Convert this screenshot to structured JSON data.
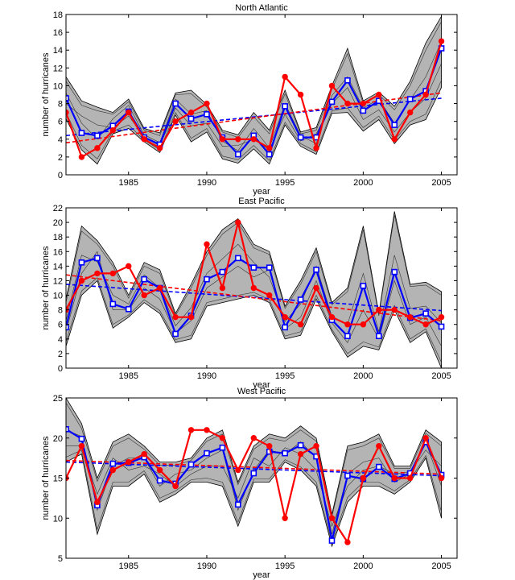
{
  "chart_data": [
    {
      "type": "line",
      "title": "North Atlantic",
      "xlabel": "year",
      "ylabel": "number of hurricanes",
      "xlim": [
        1981,
        2006
      ],
      "ylim": [
        0,
        18
      ],
      "xticks": [
        1985,
        1990,
        1995,
        2000,
        2005
      ],
      "yticks": [
        0,
        2,
        4,
        6,
        8,
        10,
        12,
        14,
        16,
        18
      ],
      "grid": false,
      "legend": "none",
      "x": [
        1981,
        1982,
        1983,
        1984,
        1985,
        1986,
        1987,
        1988,
        1989,
        1990,
        1991,
        1992,
        1993,
        1994,
        1995,
        1996,
        1997,
        1998,
        1999,
        2000,
        2001,
        2002,
        2003,
        2004,
        2005
      ],
      "band": {
        "color": "#b4b4b4",
        "upper": [
          11.0,
          8.3,
          7.6,
          7.0,
          8.5,
          5.2,
          4.7,
          9.2,
          9.5,
          7.9,
          5.0,
          4.5,
          7.0,
          5.0,
          9.5,
          4.8,
          5.3,
          10.0,
          14.2,
          8.3,
          9.3,
          7.7,
          10.5,
          14.8,
          17.8
        ],
        "lower": [
          6.3,
          2.8,
          1.2,
          4.6,
          5.2,
          3.7,
          2.5,
          6.7,
          3.7,
          4.8,
          1.8,
          1.3,
          2.9,
          1.2,
          5.6,
          3.2,
          2.3,
          6.9,
          7.0,
          4.9,
          6.2,
          3.5,
          5.6,
          6.2,
          9.8
        ],
        "members": [
          [
            10.5,
            7.8,
            7.2,
            6.8,
            8.2,
            5.0,
            4.4,
            9.0,
            9.1,
            7.6,
            4.8,
            4.2,
            6.5,
            4.6,
            9.1,
            4.6,
            5.0,
            9.6,
            13.6,
            8.0,
            9.0,
            7.3,
            10.0,
            14.0,
            17.2
          ],
          [
            7.0,
            3.3,
            1.8,
            4.9,
            5.6,
            3.9,
            2.8,
            7.0,
            4.1,
            5.2,
            2.1,
            1.7,
            3.3,
            1.6,
            5.9,
            3.5,
            2.6,
            7.2,
            7.5,
            5.3,
            6.6,
            3.9,
            6.0,
            6.8,
            10.6
          ],
          [
            9.2,
            5.8,
            4.0,
            6.3,
            7.8,
            4.5,
            3.6,
            8.5,
            6.8,
            7.2,
            3.8,
            2.7,
            5.2,
            3.0,
            8.0,
            4.4,
            3.5,
            8.9,
            11.0,
            7.5,
            8.5,
            5.8,
            8.4,
            11.0,
            15.0
          ],
          [
            8.0,
            6.6,
            5.6,
            5.3,
            6.6,
            4.3,
            3.2,
            7.5,
            5.5,
            5.8,
            3.2,
            3.3,
            4.0,
            2.8,
            6.8,
            3.8,
            4.6,
            8.0,
            9.8,
            6.2,
            7.3,
            4.8,
            7.0,
            8.6,
            12.5
          ]
        ]
      },
      "series": [
        {
          "color": "#0000ff",
          "marker": "square",
          "values": [
            8.6,
            4.7,
            4.4,
            5.5,
            7.1,
            4.2,
            3.4,
            8.0,
            6.3,
            6.8,
            4.2,
            2.3,
            4.4,
            2.3,
            7.7,
            4.2,
            4.2,
            8.2,
            10.6,
            7.2,
            8.3,
            5.6,
            8.5,
            9.4,
            14.2
          ]
        },
        {
          "color": "#ff0000",
          "marker": "circle",
          "values": [
            7,
            2,
            3,
            5,
            7,
            4,
            3,
            6,
            7,
            8,
            4,
            4,
            4,
            3,
            11,
            9,
            3,
            10,
            8,
            8,
            9,
            4,
            7,
            9,
            15
          ]
        }
      ],
      "trends": [
        {
          "color": "#0000ff",
          "dash": true,
          "x": [
            1981,
            2005
          ],
          "y": [
            4.4,
            8.6
          ]
        },
        {
          "color": "#ff0000",
          "dash": true,
          "x": [
            1981,
            2005
          ],
          "y": [
            3.6,
            9.2
          ]
        }
      ]
    },
    {
      "type": "line",
      "title": "East Pacific",
      "xlabel": "year",
      "ylabel": "number of hurricanes",
      "xlim": [
        1981,
        2006
      ],
      "ylim": [
        0,
        22
      ],
      "xticks": [
        1985,
        1990,
        1995,
        2000,
        2005
      ],
      "yticks": [
        0,
        2,
        4,
        6,
        8,
        10,
        12,
        14,
        16,
        18,
        20,
        22
      ],
      "grid": false,
      "legend": "none",
      "x": [
        1981,
        1982,
        1983,
        1984,
        1985,
        1986,
        1987,
        1988,
        1989,
        1990,
        1991,
        1992,
        1993,
        1994,
        1995,
        1996,
        1997,
        1998,
        1999,
        2000,
        2001,
        2002,
        2003,
        2004,
        2005
      ],
      "band": {
        "color": "#b4b4b4",
        "upper": [
          9.5,
          19.5,
          17.5,
          14.5,
          10.0,
          14.5,
          13.5,
          7.5,
          11.5,
          16.0,
          19.0,
          20.5,
          17.0,
          16.0,
          8.5,
          12.0,
          16.5,
          9.0,
          11.0,
          19.5,
          7.5,
          21.5,
          11.5,
          11.8,
          10.5
        ],
        "lower": [
          3.0,
          10.0,
          12.0,
          5.5,
          7.0,
          9.0,
          7.5,
          3.5,
          4.0,
          8.5,
          9.0,
          9.5,
          10.0,
          9.0,
          4.0,
          4.5,
          9.5,
          5.0,
          1.5,
          3.0,
          2.5,
          8.0,
          3.5,
          5.0,
          0.0
        ],
        "members": [
          [
            9.0,
            18.8,
            17.0,
            14.0,
            9.6,
            14.0,
            13.0,
            7.2,
            11.0,
            15.5,
            18.4,
            20.0,
            16.5,
            15.6,
            8.2,
            11.5,
            16.0,
            8.7,
            10.5,
            19.0,
            7.2,
            21.0,
            11.2,
            11.4,
            10.0
          ],
          [
            3.6,
            10.6,
            12.4,
            6.0,
            7.3,
            9.4,
            7.9,
            3.9,
            4.5,
            9.0,
            9.5,
            10.0,
            10.4,
            9.4,
            4.4,
            5.0,
            10.0,
            5.3,
            2.0,
            3.6,
            2.9,
            8.6,
            4.0,
            5.4,
            0.8
          ],
          [
            6.5,
            15.5,
            14.6,
            10.0,
            8.8,
            12.8,
            11.0,
            5.8,
            8.3,
            13.0,
            15.0,
            17.0,
            14.5,
            12.5,
            6.4,
            8.8,
            14.0,
            7.1,
            6.0,
            13.0,
            5.0,
            15.5,
            8.2,
            8.5,
            6.2
          ],
          [
            5.0,
            13.0,
            16.0,
            8.0,
            8.0,
            11.0,
            9.5,
            4.8,
            6.5,
            11.0,
            12.5,
            14.0,
            12.5,
            13.5,
            5.4,
            7.0,
            12.0,
            6.2,
            3.5,
            8.0,
            4.0,
            12.0,
            6.0,
            7.0,
            3.0
          ]
        ]
      },
      "series": [
        {
          "color": "#0000ff",
          "marker": "square",
          "values": [
            5.6,
            14.5,
            15.1,
            8.8,
            8.1,
            12.2,
            11.0,
            4.7,
            7.2,
            12.2,
            13.2,
            15.1,
            13.8,
            13.8,
            5.6,
            9.4,
            13.5,
            6.6,
            4.4,
            11.3,
            4.4,
            13.2,
            6.9,
            7.5,
            5.7
          ]
        },
        {
          "color": "#ff0000",
          "marker": "circle",
          "values": [
            8,
            12,
            13,
            13,
            14,
            10,
            11,
            7,
            7,
            17,
            11,
            20,
            11,
            10,
            7,
            6,
            11,
            7,
            6,
            6,
            8,
            8,
            7,
            6,
            7
          ]
        }
      ],
      "trends": [
        {
          "color": "#0000ff",
          "dash": true,
          "x": [
            1981,
            2005
          ],
          "y": [
            11.5,
            7.9
          ]
        },
        {
          "color": "#ff0000",
          "dash": true,
          "x": [
            1981,
            2005
          ],
          "y": [
            12.8,
            6.5
          ]
        }
      ]
    },
    {
      "type": "line",
      "title": "West Pacific",
      "xlabel": "year",
      "ylabel": "number of hurricanes",
      "xlim": [
        1981,
        2006
      ],
      "ylim": [
        5,
        25
      ],
      "xticks": [
        1985,
        1990,
        1995,
        2000,
        2005
      ],
      "yticks": [
        5,
        10,
        15,
        20,
        25
      ],
      "grid": false,
      "legend": "none",
      "x": [
        1981,
        1982,
        1983,
        1984,
        1985,
        1986,
        1987,
        1988,
        1989,
        1990,
        1991,
        1992,
        1993,
        1994,
        1995,
        1996,
        1997,
        1998,
        1999,
        2000,
        2001,
        2002,
        2003,
        2004,
        2005
      ],
      "band": {
        "color": "#b4b4b4",
        "upper": [
          25.0,
          21.8,
          15.0,
          19.5,
          20.5,
          19.0,
          17.0,
          17.0,
          17.5,
          20.0,
          21.0,
          14.5,
          19.0,
          20.5,
          20.0,
          21.5,
          20.0,
          10.5,
          19.0,
          19.5,
          20.5,
          16.5,
          16.5,
          21.0,
          19.5
        ],
        "lower": [
          17.0,
          18.0,
          8.0,
          14.0,
          14.0,
          15.5,
          12.0,
          13.0,
          14.5,
          14.5,
          14.0,
          9.0,
          14.5,
          14.5,
          17.0,
          16.0,
          14.0,
          6.5,
          12.0,
          14.0,
          14.0,
          13.0,
          14.5,
          17.5,
          10.0
        ],
        "members": [
          [
            24.4,
            21.2,
            14.6,
            19.0,
            20.0,
            18.6,
            16.6,
            16.6,
            17.2,
            19.6,
            20.5,
            14.2,
            18.6,
            20.0,
            19.6,
            21.0,
            19.6,
            10.2,
            18.5,
            19.0,
            20.0,
            16.2,
            16.2,
            20.6,
            19.0
          ],
          [
            17.6,
            18.5,
            8.6,
            14.5,
            14.5,
            15.9,
            12.5,
            13.4,
            14.8,
            15.0,
            14.5,
            9.5,
            14.9,
            14.9,
            17.3,
            16.4,
            14.5,
            6.9,
            12.6,
            14.5,
            14.5,
            13.4,
            14.8,
            17.8,
            10.8
          ],
          [
            21.0,
            20.2,
            11.0,
            16.5,
            17.5,
            17.5,
            14.0,
            15.5,
            16.0,
            17.5,
            18.5,
            11.0,
            16.0,
            18.5,
            18.0,
            19.5,
            17.5,
            8.0,
            15.5,
            17.0,
            17.5,
            14.5,
            15.5,
            19.5,
            14.0
          ],
          [
            19.0,
            19.0,
            13.0,
            17.5,
            16.0,
            16.5,
            15.5,
            14.0,
            15.5,
            16.5,
            16.5,
            12.5,
            17.5,
            16.5,
            18.8,
            18.0,
            16.0,
            9.0,
            14.0,
            16.0,
            16.5,
            15.5,
            15.8,
            18.5,
            16.5
          ]
        ]
      },
      "series": [
        {
          "color": "#0000ff",
          "marker": "square",
          "values": [
            21.1,
            19.9,
            11.6,
            16.8,
            16.9,
            17.6,
            14.7,
            14.3,
            16.7,
            18.1,
            18.8,
            11.7,
            15.6,
            18.3,
            18.1,
            19.1,
            17.7,
            7.2,
            15.3,
            14.9,
            16.4,
            14.9,
            15.6,
            19.5,
            15.4
          ]
        },
        {
          "color": "#ff0000",
          "marker": "circle",
          "values": [
            15,
            19,
            12,
            16,
            17,
            18,
            16,
            14,
            21,
            21,
            20,
            16,
            20,
            19,
            10,
            18,
            19,
            10,
            7,
            15,
            19,
            15,
            15,
            20,
            15
          ]
        }
      ],
      "trends": [
        {
          "color": "#0000ff",
          "dash": true,
          "x": [
            1981,
            2005
          ],
          "y": [
            17.0,
            15.3
          ]
        },
        {
          "color": "#ff0000",
          "dash": true,
          "x": [
            1981,
            2005
          ],
          "y": [
            17.2,
            15.5
          ]
        }
      ]
    }
  ]
}
